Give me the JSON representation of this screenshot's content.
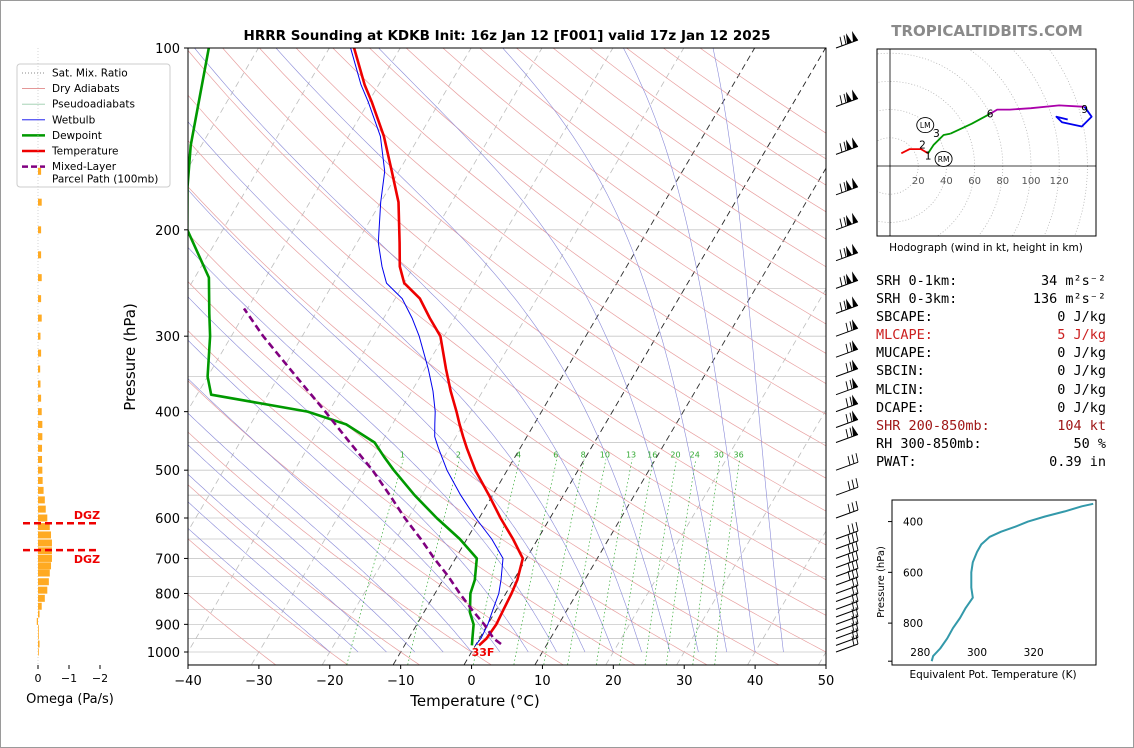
{
  "title": "HRRR Sounding at KDKB Init: 16z Jan 12 [F001] valid 17z Jan 12 2025",
  "watermark": "TROPICALTIDBITS.COM",
  "skewt": {
    "xlabel": "Temperature (°C)",
    "ylabel": "Pressure (hPa)",
    "xlim": [
      -40,
      50
    ],
    "ylim": [
      1050,
      100
    ],
    "xticks": [
      "−40",
      "−30",
      "−20",
      "−10",
      "0",
      "10",
      "20",
      "30",
      "40",
      "50"
    ],
    "yticks": [
      "100",
      "200",
      "300",
      "400",
      "500",
      "600",
      "700",
      "800",
      "900",
      "1000"
    ],
    "surface_label": "33F",
    "mixing_ratio_labels": [
      "1",
      "2",
      "4",
      "6",
      "8",
      "10",
      "13",
      "16",
      "20",
      "24",
      "30",
      "36"
    ]
  },
  "legend": {
    "items": [
      {
        "label": "Sat. Mix. Ratio",
        "color": "#888888",
        "style": "dotted"
      },
      {
        "label": "Dry Adiabats",
        "color": "#e08888",
        "style": "thin"
      },
      {
        "label": "Pseudoadiabats",
        "color": "#99ccaa",
        "style": "thin"
      },
      {
        "label": "Wetbulb",
        "color": "#0000ee",
        "style": "thin"
      },
      {
        "label": "Dewpoint",
        "color": "#009900",
        "style": "thick"
      },
      {
        "label": "Temperature",
        "color": "#ee0000",
        "style": "thick"
      },
      {
        "label": "Mixed-Layer",
        "color": "#800080",
        "style": "dashed"
      },
      {
        "label": "Parcel Path (100mb)",
        "color": "#800080",
        "style": "none"
      }
    ]
  },
  "omega": {
    "xlabel": "Omega (Pa/s)",
    "xticks": [
      "0",
      "−1",
      "−2"
    ],
    "dgz_label": "DGZ",
    "dgz_levels": [
      612,
      678
    ]
  },
  "hodograph": {
    "caption": "Hodograph (wind in kt, height in km)",
    "ring_labels": [
      "20",
      "40",
      "60",
      "80",
      "100",
      "120"
    ],
    "height_labels": [
      "1",
      "2",
      "3",
      "6",
      "9"
    ],
    "storm_motion_labels": [
      "LM",
      "RM"
    ]
  },
  "stats": [
    {
      "label": "SRH 0-1km:",
      "value": "34 m²s⁻²",
      "color": "black"
    },
    {
      "label": "SRH 0-3km:",
      "value": "136 m²s⁻²",
      "color": "black"
    },
    {
      "label": "SBCAPE:",
      "value": "0 J/kg",
      "color": "black"
    },
    {
      "label": "MLCAPE:",
      "value": "5 J/kg",
      "color": "red"
    },
    {
      "label": "MUCAPE:",
      "value": "0 J/kg",
      "color": "black"
    },
    {
      "label": "SBCIN:",
      "value": "0 J/kg",
      "color": "black"
    },
    {
      "label": "MLCIN:",
      "value": "0 J/kg",
      "color": "black"
    },
    {
      "label": "DCAPE:",
      "value": "0 J/kg",
      "color": "black"
    },
    {
      "label": "SHR 200-850mb:",
      "value": "104 kt",
      "color": "darkred"
    },
    {
      "label": "RH 300-850mb:",
      "value": "50 %",
      "color": "black"
    },
    {
      "label": "PWAT:",
      "value": "0.39 in",
      "color": "black"
    }
  ],
  "theta_e_panel": {
    "xlabel": "Equivalent Pot. Temperature (K)",
    "ylabel": "Pressure (hPa)",
    "xticks": [
      "280",
      "300",
      "320"
    ],
    "yticks": [
      "400",
      "600",
      "800"
    ]
  },
  "chart_data": [
    {
      "type": "line",
      "name": "skew-t",
      "title": "HRRR Sounding at KDKB Init: 16z Jan 12 [F001] valid 17z Jan 12 2025",
      "xlabel": "Temperature (°C)",
      "ylabel": "Pressure (hPa)",
      "xlim": [
        -40,
        50
      ],
      "ylim": [
        1050,
        100
      ],
      "y_scale": "log",
      "grid": true,
      "legend": "top-left",
      "series": [
        {
          "name": "Temperature",
          "color": "#ee0000",
          "points": [
            [
              975,
              0.5
            ],
            [
              950,
              1.0
            ],
            [
              900,
              1.2
            ],
            [
              850,
              1.0
            ],
            [
              800,
              0.8
            ],
            [
              760,
              0.5
            ],
            [
              700,
              -0.5
            ],
            [
              650,
              -3.5
            ],
            [
              600,
              -7.0
            ],
            [
              550,
              -10.5
            ],
            [
              500,
              -14.5
            ],
            [
              460,
              -17.5
            ],
            [
              440,
              -19.0
            ],
            [
              420,
              -20.5
            ],
            [
              400,
              -22.0
            ],
            [
              370,
              -24.5
            ],
            [
              340,
              -27.0
            ],
            [
              300,
              -30.5
            ],
            [
              280,
              -33.5
            ],
            [
              260,
              -36.5
            ],
            [
              245,
              -40.0
            ],
            [
              230,
              -42.0
            ],
            [
              210,
              -44.0
            ],
            [
              180,
              -47.5
            ],
            [
              160,
              -51.0
            ],
            [
              140,
              -55.0
            ],
            [
              123,
              -59.5
            ],
            [
              115,
              -62.0
            ],
            [
              100,
              -66.5
            ]
          ]
        },
        {
          "name": "Dewpoint",
          "color": "#009900",
          "points": [
            [
              975,
              -0.5
            ],
            [
              950,
              -1.0
            ],
            [
              900,
              -2.0
            ],
            [
              860,
              -3.5
            ],
            [
              800,
              -5.0
            ],
            [
              760,
              -5.5
            ],
            [
              700,
              -7.0
            ],
            [
              650,
              -11.0
            ],
            [
              600,
              -16.0
            ],
            [
              550,
              -21.0
            ],
            [
              500,
              -26.0
            ],
            [
              475,
              -28.5
            ],
            [
              450,
              -31.0
            ],
            [
              420,
              -36.5
            ],
            [
              400,
              -43.0
            ],
            [
              375,
              -58.0
            ],
            [
              350,
              -60.0
            ],
            [
              300,
              -63.0
            ],
            [
              275,
              -65.0
            ],
            [
              240,
              -68.0
            ],
            [
              200,
              -75.0
            ],
            [
              170,
              -78.5
            ],
            [
              145,
              -81.5
            ],
            [
              100,
              -87.0
            ]
          ]
        },
        {
          "name": "Wetbulb",
          "color": "#0000ee",
          "points": [
            [
              975,
              0.0
            ],
            [
              950,
              0.2
            ],
            [
              900,
              0.0
            ],
            [
              850,
              -0.5
            ],
            [
              800,
              -1.0
            ],
            [
              760,
              -1.8
            ],
            [
              700,
              -3.3
            ],
            [
              650,
              -6.5
            ],
            [
              600,
              -10.5
            ],
            [
              550,
              -14.5
            ],
            [
              500,
              -18.5
            ],
            [
              460,
              -21.5
            ],
            [
              440,
              -23.0
            ],
            [
              420,
              -24.0
            ],
            [
              400,
              -25.0
            ],
            [
              370,
              -27.0
            ],
            [
              340,
              -29.5
            ],
            [
              300,
              -33.5
            ],
            [
              280,
              -36.0
            ],
            [
              260,
              -39.0
            ],
            [
              245,
              -42.5
            ],
            [
              230,
              -44.5
            ],
            [
              210,
              -47.0
            ],
            [
              180,
              -50.0
            ],
            [
              160,
              -52.0
            ],
            [
              140,
              -55.5
            ],
            [
              123,
              -60.0
            ],
            [
              115,
              -62.5
            ],
            [
              100,
              -67.0
            ]
          ]
        },
        {
          "name": "Mixed-Layer Parcel Path (100mb)",
          "color": "#800080",
          "points": [
            [
              970,
              3.5
            ],
            [
              950,
              2.0
            ],
            [
              900,
              -0.5
            ],
            [
              850,
              -3.5
            ],
            [
              800,
              -6.5
            ],
            [
              750,
              -9.5
            ],
            [
              700,
              -13.0
            ],
            [
              650,
              -16.5
            ],
            [
              600,
              -20.5
            ],
            [
              550,
              -24.5
            ],
            [
              500,
              -29.0
            ],
            [
              450,
              -34.5
            ],
            [
              400,
              -40.5
            ],
            [
              350,
              -47.5
            ],
            [
              300,
              -55.5
            ],
            [
              270,
              -60.5
            ]
          ]
        }
      ],
      "surface_temperature": "33F"
    },
    {
      "type": "bar",
      "name": "omega",
      "xlabel": "Omega (Pa/s)",
      "xlim": [
        0.3,
        -2.3
      ],
      "y": [
        1000,
        970,
        940,
        915,
        890,
        865,
        840,
        815,
        790,
        765,
        740,
        720,
        700,
        680,
        660,
        640,
        620,
        600,
        580,
        560,
        540,
        520,
        500,
        480,
        460,
        440,
        420,
        400,
        380,
        360,
        340,
        320,
        300,
        280,
        260,
        240,
        220,
        200,
        180,
        160
      ],
      "values": [
        -0.02,
        -0.05,
        -0.02,
        0.0,
        0.04,
        -0.05,
        -0.12,
        -0.22,
        -0.3,
        -0.35,
        -0.38,
        -0.42,
        -0.45,
        -0.45,
        -0.45,
        -0.42,
        -0.38,
        -0.3,
        -0.25,
        -0.22,
        -0.18,
        -0.15,
        -0.14,
        -0.13,
        -0.13,
        -0.14,
        -0.14,
        -0.12,
        -0.1,
        -0.08,
        -0.07,
        -0.1,
        -0.08,
        -0.12,
        -0.1,
        -0.12,
        -0.1,
        -0.1,
        -0.12,
        -0.1
      ]
    },
    {
      "type": "line",
      "name": "hodograph",
      "xlim": [
        -10,
        145
      ],
      "ylim": [
        -30,
        90
      ],
      "series": [
        {
          "name": "0-1 km",
          "color": "#ee0000",
          "points": [
            [
              8,
              9
            ],
            [
              14,
              12
            ],
            [
              22,
              12
            ],
            [
              27,
              9
            ]
          ]
        },
        {
          "name": "1-3 km",
          "color": "#009900",
          "points": [
            [
              27,
              9
            ],
            [
              31,
              15
            ],
            [
              38,
              22
            ],
            [
              43,
              23
            ]
          ]
        },
        {
          "name": "3-6 km",
          "color": "#009900",
          "points": [
            [
              43,
              23
            ],
            [
              58,
              30
            ],
            [
              71,
              37
            ]
          ]
        },
        {
          "name": "6-9 km",
          "color": "#aa00aa",
          "points": [
            [
              71,
              37
            ],
            [
              76,
              40
            ],
            [
              85,
              40
            ],
            [
              100,
              41
            ],
            [
              120,
              43
            ],
            [
              138,
              42
            ]
          ]
        },
        {
          "name": "9+ km",
          "color": "#0000ee",
          "points": [
            [
              138,
              42
            ],
            [
              143,
              35
            ],
            [
              136,
              28
            ],
            [
              122,
              31
            ],
            [
              118,
              35
            ],
            [
              126,
              33
            ]
          ]
        }
      ],
      "height_points": [
        [
          "1",
          27,
          7
        ],
        [
          "2",
          23,
          15
        ],
        [
          "3",
          33,
          23
        ],
        [
          "6",
          71,
          37
        ],
        [
          "9",
          138,
          40
        ]
      ],
      "storm_motion": [
        [
          "LM",
          25,
          29
        ],
        [
          "RM",
          38,
          5
        ]
      ]
    },
    {
      "type": "line",
      "name": "theta-e",
      "xlabel": "Equivalent Pot. Temperature (K)",
      "ylabel": "Pressure (hPa)",
      "xlim": [
        270,
        342
      ],
      "ylim": [
        965,
        315
      ],
      "points": [
        [
          950,
          284.0
        ],
        [
          930,
          284.5
        ],
        [
          900,
          287.0
        ],
        [
          860,
          289.5
        ],
        [
          820,
          291.5
        ],
        [
          780,
          294.0
        ],
        [
          740,
          296.0
        ],
        [
          700,
          298.5
        ],
        [
          660,
          298.0
        ],
        [
          600,
          298.0
        ],
        [
          560,
          298.5
        ],
        [
          520,
          300.0
        ],
        [
          490,
          301.5
        ],
        [
          460,
          304.5
        ],
        [
          440,
          308.5
        ],
        [
          420,
          313.5
        ],
        [
          400,
          318.0
        ],
        [
          380,
          324.0
        ],
        [
          360,
          331.0
        ],
        [
          340,
          337.0
        ],
        [
          330,
          341.0
        ]
      ]
    }
  ]
}
